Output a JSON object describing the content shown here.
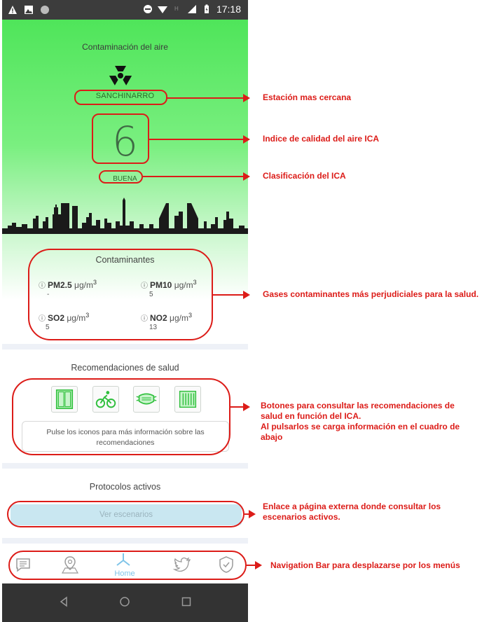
{
  "status_bar": {
    "time": "17:18"
  },
  "hero": {
    "title": "Contaminación del aire",
    "station": "SANCHINARRO",
    "ica_value": "6",
    "ica_class": "BUENA"
  },
  "pollutants": {
    "title": "Contaminantes",
    "superscript": "3",
    "items": [
      {
        "name": "PM2.5",
        "unit": "μg/m",
        "value": "-"
      },
      {
        "name": "PM10",
        "unit": "μg/m",
        "value": "5"
      },
      {
        "name": "SO2",
        "unit": "μg/m",
        "value": "5"
      },
      {
        "name": "NO2",
        "unit": "μg/m",
        "value": "13"
      }
    ]
  },
  "health": {
    "title": "Recomendaciones de salud",
    "buttons": [
      "window-icon",
      "bicycle-icon",
      "mask-icon",
      "radiator-icon"
    ],
    "info": "Pulse los iconos para más información sobre las recomendaciones"
  },
  "protocols": {
    "title": "Protocolos activos",
    "button": "Ver escenarios"
  },
  "navbar": {
    "items": [
      "chat-icon",
      "map-icon",
      "home-icon",
      "twitter-icon",
      "shield-icon"
    ],
    "home_label": "Home"
  },
  "annotations": {
    "station": "Estación mas cercana",
    "ica": "Indice de calidad del aire ICA",
    "classification": "Clasificación del ICA",
    "gases": "Gases contaminantes más perjudiciales para la salud.",
    "buttons_line1": "Botones para consultar las recomendaciones de salud en función del ICA.",
    "buttons_line2": "Al pulsarlos se carga información en el cuadro de abajo",
    "link": "Enlace a página externa donde consultar los escenarios activos.",
    "navbar": "Navigation Bar para desplazarse por los menús"
  },
  "colors": {
    "annotation": "#dc1c18",
    "hero_green": "#4fe55a",
    "home_blue": "#7fc4e8"
  }
}
